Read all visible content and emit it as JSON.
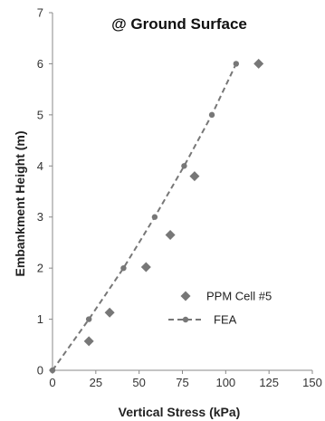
{
  "chart_data": {
    "type": "scatter",
    "title": "@ Ground  Surface",
    "xlabel": "Vertical Stress (kPa)",
    "ylabel": "Embankment Height (m)",
    "xlim": [
      0,
      150
    ],
    "ylim": [
      0,
      7
    ],
    "x_ticks": [
      "0",
      "25",
      "50",
      "75",
      "100",
      "125",
      "150"
    ],
    "y_ticks": [
      "0",
      "1",
      "2",
      "3",
      "4",
      "5",
      "6",
      "7"
    ],
    "grid": false,
    "legend_position": "bottom-right",
    "series": [
      {
        "name": "PPM Cell #5",
        "style": "markers",
        "marker": "diamond",
        "color": "#777777",
        "points": [
          {
            "x": 21,
            "y": 0.57
          },
          {
            "x": 33,
            "y": 1.13
          },
          {
            "x": 54,
            "y": 2.02
          },
          {
            "x": 68,
            "y": 2.65
          },
          {
            "x": 82,
            "y": 3.8
          },
          {
            "x": 119,
            "y": 6.0
          }
        ]
      },
      {
        "name": "FEA",
        "style": "dashed-line-markers",
        "marker": "circle",
        "color": "#777777",
        "points": [
          {
            "x": 0,
            "y": 0
          },
          {
            "x": 21,
            "y": 1.0
          },
          {
            "x": 41,
            "y": 2.0
          },
          {
            "x": 59,
            "y": 3.0
          },
          {
            "x": 76,
            "y": 4.0
          },
          {
            "x": 92,
            "y": 5.0
          },
          {
            "x": 106,
            "y": 6.0
          }
        ]
      }
    ]
  }
}
